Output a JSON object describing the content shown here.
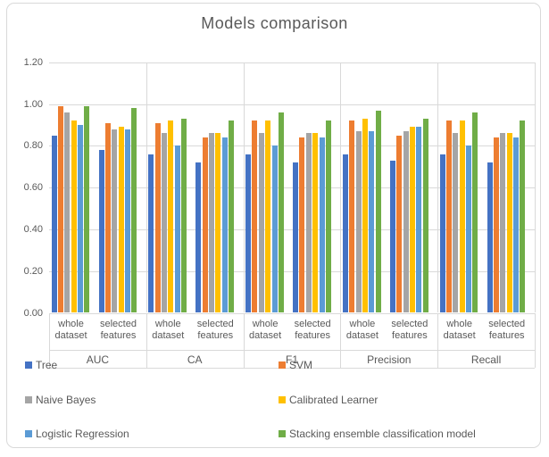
{
  "chart": {
    "title": "Models comparison",
    "y_axis": {
      "tick_labels": [
        "0.00",
        "0.20",
        "0.40",
        "0.60",
        "0.80",
        "1.00",
        "1.20"
      ]
    }
  },
  "chart_data": {
    "type": "bar",
    "title": "Models comparison",
    "xlabel": "",
    "ylabel": "",
    "ylim": [
      0,
      1.2
    ],
    "y_tick_step": 0.2,
    "grid": true,
    "legend_position": "bottom",
    "groups": [
      "AUC",
      "CA",
      "F1",
      "Precision",
      "Recall"
    ],
    "subgroups": [
      "whole dataset",
      "selected features"
    ],
    "subgroup_label_lines": [
      [
        "whole",
        "dataset"
      ],
      [
        "selected",
        "features"
      ]
    ],
    "value_order_note": "values are [AUC-whole, AUC-selected, CA-whole, CA-selected, F1-whole, F1-selected, Precision-whole, Precision-selected, Recall-whole, Recall-selected]",
    "series": [
      {
        "name": "Tree",
        "color": "#4472C4",
        "values": [
          0.85,
          0.78,
          0.76,
          0.72,
          0.76,
          0.72,
          0.76,
          0.73,
          0.76,
          0.72
        ]
      },
      {
        "name": "SVM",
        "color": "#ED7D31",
        "values": [
          0.99,
          0.91,
          0.91,
          0.84,
          0.92,
          0.84,
          0.92,
          0.85,
          0.92,
          0.84
        ]
      },
      {
        "name": "Naive Bayes",
        "color": "#A5A5A5",
        "values": [
          0.96,
          0.88,
          0.86,
          0.86,
          0.86,
          0.86,
          0.87,
          0.87,
          0.86,
          0.86
        ]
      },
      {
        "name": "Calibrated Learner",
        "color": "#FFC000",
        "values": [
          0.92,
          0.89,
          0.92,
          0.86,
          0.92,
          0.86,
          0.93,
          0.89,
          0.92,
          0.86
        ]
      },
      {
        "name": "Logistic Regression",
        "color": "#5B9BD5",
        "values": [
          0.9,
          0.88,
          0.8,
          0.84,
          0.8,
          0.84,
          0.87,
          0.89,
          0.8,
          0.84
        ]
      },
      {
        "name": "Stacking ensemble classification model",
        "color": "#70AD47",
        "values": [
          0.99,
          0.98,
          0.93,
          0.92,
          0.96,
          0.92,
          0.97,
          0.93,
          0.96,
          0.92
        ]
      }
    ],
    "legend": {
      "columns": [
        [
          "Tree",
          "Naive Bayes",
          "Logistic Regression"
        ],
        [
          "SVM",
          "Calibrated Learner",
          "Stacking ensemble classification model"
        ]
      ]
    },
    "colors": {
      "text": "#595959",
      "grid": "#d9d9d9"
    }
  }
}
